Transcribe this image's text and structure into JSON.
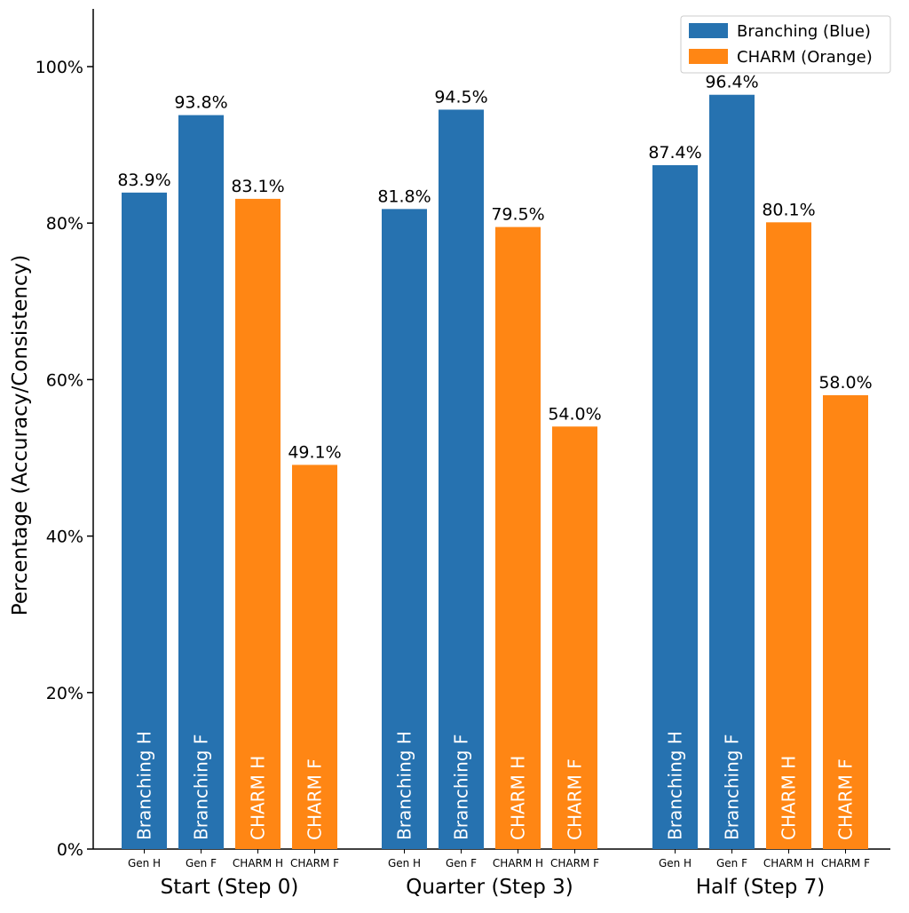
{
  "chart_data": {
    "type": "bar",
    "title": "",
    "xlabel": "",
    "ylabel": "Percentage (Accuracy/Consistency)",
    "ylim": [
      0,
      1.07
    ],
    "y_tick_values": [
      0,
      0.2,
      0.4,
      0.6,
      0.8,
      1.0
    ],
    "y_tick_labels": [
      "0%",
      "20%",
      "40%",
      "60%",
      "80%",
      "100%"
    ],
    "grid": false,
    "legend_position": "top-right",
    "legend": [
      {
        "label": "Branching (Blue)",
        "color": "#2672b0"
      },
      {
        "label": "CHARM (Orange)",
        "color": "#ff8614"
      }
    ],
    "colors": {
      "branching": "#2672b0",
      "charm": "#ff8614"
    },
    "groups": [
      {
        "label": "Start (Step 0)",
        "bars": [
          {
            "tick": "Gen H",
            "inner": "Branching H",
            "value": 83.9,
            "display": "83.9%",
            "series": "branching"
          },
          {
            "tick": "Gen F",
            "inner": "Branching F",
            "value": 93.8,
            "display": "93.8%",
            "series": "branching"
          },
          {
            "tick": "CHARM H",
            "inner": "CHARM H",
            "value": 83.1,
            "display": "83.1%",
            "series": "charm"
          },
          {
            "tick": "CHARM F",
            "inner": "CHARM F",
            "value": 49.1,
            "display": "49.1%",
            "series": "charm"
          }
        ]
      },
      {
        "label": "Quarter (Step 3)",
        "bars": [
          {
            "tick": "Gen H",
            "inner": "Branching H",
            "value": 81.8,
            "display": "81.8%",
            "series": "branching"
          },
          {
            "tick": "Gen F",
            "inner": "Branching F",
            "value": 94.5,
            "display": "94.5%",
            "series": "branching"
          },
          {
            "tick": "CHARM H",
            "inner": "CHARM H",
            "value": 79.5,
            "display": "79.5%",
            "series": "charm"
          },
          {
            "tick": "CHARM F",
            "inner": "CHARM F",
            "value": 54.0,
            "display": "54.0%",
            "series": "charm"
          }
        ]
      },
      {
        "label": "Half (Step 7)",
        "bars": [
          {
            "tick": "Gen H",
            "inner": "Branching H",
            "value": 87.4,
            "display": "87.4%",
            "series": "branching"
          },
          {
            "tick": "Gen F",
            "inner": "Branching F",
            "value": 96.4,
            "display": "96.4%",
            "series": "branching"
          },
          {
            "tick": "CHARM H",
            "inner": "CHARM H",
            "value": 80.1,
            "display": "80.1%",
            "series": "charm"
          },
          {
            "tick": "CHARM F",
            "inner": "CHARM F",
            "value": 58.0,
            "display": "58.0%",
            "series": "charm"
          }
        ]
      }
    ]
  }
}
